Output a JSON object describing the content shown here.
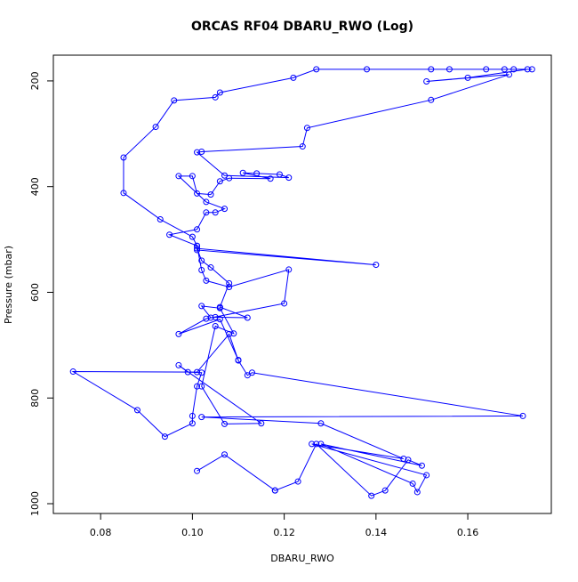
{
  "chart_data": {
    "type": "line",
    "title": "ORCAS RF04 DBARU_RWO (Log)",
    "x_label": "DBARU_RWO",
    "y_label": "Pressure (mbar)",
    "color": "#0000ff",
    "marker": "open-circle",
    "x": [
      0.101,
      0.107,
      0.118,
      0.118,
      0.123,
      0.127,
      0.139,
      0.142,
      0.147,
      0.15,
      0.128,
      0.148,
      0.149,
      0.151,
      0.126,
      0.146,
      0.128,
      0.102,
      0.172,
      0.113,
      0.112,
      0.11,
      0.108,
      0.101,
      0.074,
      0.088,
      0.094,
      0.1,
      0.1,
      0.101,
      0.102,
      0.099,
      0.097,
      0.115,
      0.107,
      0.102,
      0.105,
      0.109,
      0.106,
      0.102,
      0.104,
      0.105,
      0.112,
      0.106,
      0.108,
      0.104,
      0.102,
      0.101,
      0.14,
      0.101,
      0.101,
      0.095,
      0.101,
      0.103,
      0.105,
      0.107,
      0.103,
      0.097,
      0.1,
      0.101,
      0.104,
      0.106,
      0.108,
      0.117,
      0.111,
      0.114,
      0.119,
      0.121,
      0.107,
      0.101,
      0.102,
      0.124,
      0.125,
      0.152,
      0.169,
      0.151,
      0.16,
      0.173,
      0.174,
      0.17,
      0.168,
      0.164,
      0.156,
      0.152,
      0.138,
      0.127,
      0.122,
      0.106,
      0.105,
      0.096,
      0.092,
      0.085,
      0.085,
      0.093,
      0.1,
      0.101,
      0.102,
      0.103,
      0.108,
      0.121,
      0.12,
      0.103,
      0.097,
      0.106,
      0.11
    ],
    "values": [
      938,
      907,
      975,
      975,
      958,
      887,
      985,
      975,
      917,
      928,
      887,
      962,
      978,
      946,
      887,
      915,
      848,
      836,
      834,
      752,
      757,
      729,
      679,
      751,
      750,
      823,
      873,
      848,
      834,
      778,
      752,
      751,
      738,
      848,
      849,
      778,
      664,
      678,
      630,
      626,
      648,
      647,
      648,
      628,
      583,
      553,
      540,
      517,
      548,
      520,
      512,
      491,
      481,
      449,
      449,
      442,
      429,
      380,
      380,
      413,
      415,
      390,
      384,
      385,
      374,
      375,
      377,
      383,
      379,
      335,
      334,
      324,
      289,
      236,
      188,
      201,
      194,
      178,
      178,
      178,
      178,
      178,
      178,
      178,
      178,
      178,
      194,
      222,
      231,
      237,
      287,
      345,
      412,
      462,
      495,
      512,
      558,
      578,
      590,
      557,
      621,
      650,
      679,
      651,
      728
    ],
    "xlim": [
      0.0697,
      0.1782
    ],
    "ylim": [
      1018.5,
      151.3
    ],
    "xticks": [
      0.08,
      {
        "value": 0.1,
        "label": "0.10"
      },
      0.12,
      0.14,
      0.16
    ],
    "yticks": [
      200,
      400,
      600,
      800,
      1000
    ]
  }
}
